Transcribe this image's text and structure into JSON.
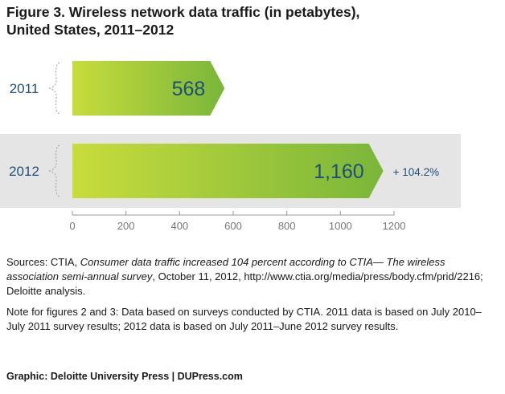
{
  "title_line1": "Figure 3. Wireless network data traffic (in petabytes),",
  "title_line2": "United States, 2011–2012",
  "chart_data": {
    "type": "bar",
    "orientation": "horizontal",
    "categories": [
      "2011",
      "2012"
    ],
    "values": [
      568,
      1160
    ],
    "data_labels": [
      "568",
      "1,160"
    ],
    "change_annotation": "+ 104.2%",
    "xlim": [
      0,
      1200
    ],
    "xticks": [
      "0",
      "200",
      "400",
      "600",
      "800",
      "1000",
      "1200"
    ],
    "xtick_values": [
      0,
      200,
      400,
      600,
      800,
      1000,
      1200
    ],
    "highlight_category": "2012",
    "colors": {
      "bar_gradient_start": "#c8dc3c",
      "bar_gradient_end": "#7ab63a",
      "label": "#1f4e79",
      "highlight_band": "#e5e5e5",
      "axis": "#999999"
    }
  },
  "sources": {
    "prefix": "Sources: CTIA, ",
    "italic": "Consumer data traffic increased 104 percent according to CTIA— The wireless association semi-annual survey",
    "suffix": ", October 11, 2012, http://www.ctia.org/media/press/body.cfm/prid/2216; Deloitte analysis."
  },
  "note": "Note for figures 2 and 3: Data based on surveys conducted by CTIA. 2011 data is based on July 2010–July 2011 survey results; 2012 data is based on July 2011–June 2012 survey results.",
  "credit": "Graphic: Deloitte University Press | DUPress.com"
}
